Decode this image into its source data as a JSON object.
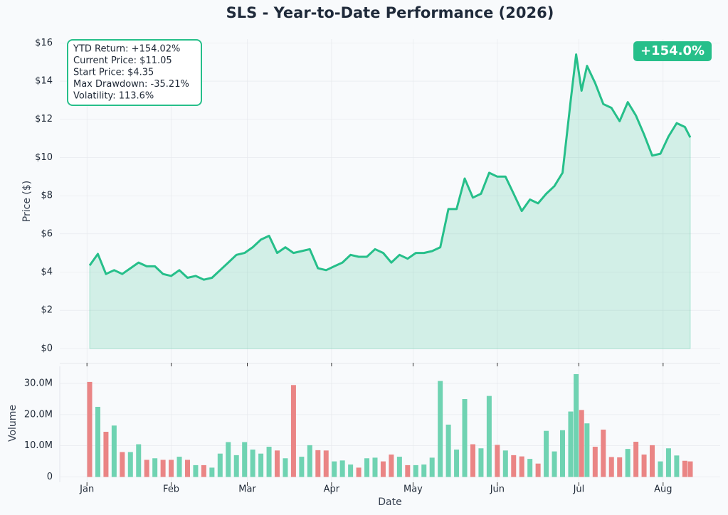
{
  "chart_data": {
    "type": "line",
    "title": "SLS - Year-to-Date Performance (2026)",
    "ylabel": "Price ($)",
    "y2label": "Volume",
    "xlabel": "Date",
    "badge": "+154.0%",
    "stats": [
      "YTD Return: +154.02%",
      "Current Price: $11.05",
      "Start Price: $4.35",
      "Max Drawdown: -35.21%",
      "Volatility: 113.6%"
    ],
    "color": "#26bf8a",
    "up_color": "#6fd3b2",
    "down_color": "#ea8585",
    "grid": true,
    "xlim": [
      -10,
      233
    ],
    "xticks": [
      {
        "value": 0,
        "label": "Jan"
      },
      {
        "value": 31,
        "label": "Feb"
      },
      {
        "value": 59,
        "label": "Mar"
      },
      {
        "value": 90,
        "label": "Apr"
      },
      {
        "value": 120,
        "label": "May"
      },
      {
        "value": 151,
        "label": "Jun"
      },
      {
        "value": 181,
        "label": "Jul"
      },
      {
        "value": 212,
        "label": "Aug"
      }
    ],
    "ylim": [
      -0.75,
      16.2
    ],
    "yticks": [
      {
        "value": 0,
        "label": "$0"
      },
      {
        "value": 2,
        "label": "$2"
      },
      {
        "value": 4,
        "label": "$4"
      },
      {
        "value": 6,
        "label": "$6"
      },
      {
        "value": 8,
        "label": "$8"
      },
      {
        "value": 10,
        "label": "$10"
      },
      {
        "value": 12,
        "label": "$12"
      },
      {
        "value": 14,
        "label": "$14"
      },
      {
        "value": 16,
        "label": "$16"
      }
    ],
    "vlim": [
      -1700000,
      35500000
    ],
    "vticks": [
      0,
      {
        "value": 10000000,
        "label": "10.0M"
      },
      {
        "value": 20000000,
        "label": "20.0M"
      },
      {
        "value": 30000000,
        "label": "30.0M"
      }
    ],
    "x": [
      1,
      4,
      7,
      10,
      13,
      16,
      19,
      22,
      25,
      28,
      31,
      34,
      37,
      40,
      43,
      46,
      49,
      52,
      55,
      58,
      61,
      64,
      67,
      70,
      73,
      76,
      79,
      82,
      85,
      88,
      91,
      94,
      97,
      100,
      103,
      106,
      109,
      112,
      115,
      118,
      121,
      124,
      127,
      130,
      133,
      136,
      139,
      142,
      145,
      148,
      151,
      154,
      157,
      160,
      163,
      166,
      169,
      172,
      175,
      178,
      180,
      182,
      184,
      187,
      190,
      193,
      196,
      199,
      202,
      205,
      208,
      211,
      214,
      217,
      220,
      222
    ],
    "values": [
      4.35,
      4.95,
      3.9,
      4.1,
      3.9,
      4.2,
      4.5,
      4.3,
      4.3,
      3.9,
      3.8,
      4.1,
      3.7,
      3.8,
      3.6,
      3.7,
      4.1,
      4.5,
      4.9,
      5.0,
      5.3,
      5.7,
      5.9,
      5.0,
      5.3,
      5.0,
      5.1,
      5.2,
      4.2,
      4.1,
      4.3,
      4.5,
      4.9,
      4.8,
      4.8,
      5.2,
      5.0,
      4.5,
      4.9,
      4.7,
      5.0,
      5.0,
      5.1,
      5.3,
      7.3,
      7.3,
      8.9,
      7.9,
      8.1,
      9.2,
      9.0,
      9.0,
      8.1,
      7.2,
      7.8,
      7.6,
      8.1,
      8.5,
      9.2,
      13.0,
      15.4,
      13.5,
      14.8,
      13.9,
      12.8,
      12.6,
      11.9,
      12.9,
      12.2,
      11.2,
      10.1,
      10.2,
      11.1,
      11.8,
      11.6,
      11.05
    ],
    "volumes": [
      30500000,
      22500000,
      14500000,
      16500000,
      8000000,
      8000000,
      10500000,
      5500000,
      6000000,
      5500000,
      5500000,
      6500000,
      5500000,
      3800000,
      3800000,
      3000000,
      7500000,
      11200000,
      7000000,
      11200000,
      8800000,
      7500000,
      9700000,
      8500000,
      6000000,
      29500000,
      6500000,
      10200000,
      8600000,
      8500000,
      5000000,
      5300000,
      4000000,
      3000000,
      6000000,
      6200000,
      5000000,
      7200000,
      6500000,
      3800000,
      3800000,
      4000000,
      6200000,
      30800000,
      16800000,
      8800000,
      25000000,
      10500000,
      9200000,
      26000000,
      10300000,
      8500000,
      7000000,
      6600000,
      5800000,
      4300000,
      14800000,
      8200000,
      15000000,
      21000000,
      33000000,
      21500000,
      17200000,
      9700000,
      15200000,
      6400000,
      6300000,
      9000000,
      11300000,
      7200000,
      10200000,
      5000000,
      9200000,
      6900000,
      5200000,
      5000000
    ]
  }
}
